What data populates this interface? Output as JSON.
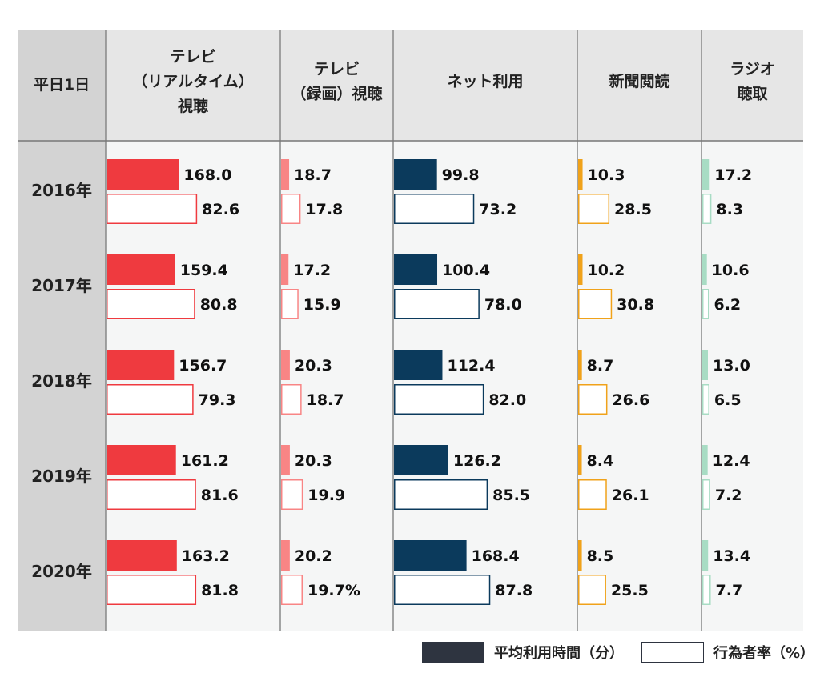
{
  "chart_data": {
    "type": "bar",
    "corner_label": "平日1日",
    "columns": [
      {
        "key": "tv_realtime",
        "header": [
          "テレビ",
          "（リアルタイム）",
          "視聴"
        ],
        "color": "#ef3a3f",
        "border": "#ef3a3f"
      },
      {
        "key": "tv_recorded",
        "header": [
          "テレビ",
          "（録画）視聴"
        ],
        "color": "#f88585",
        "border": "#f88585"
      },
      {
        "key": "internet",
        "header": [
          "ネット利用"
        ],
        "color": "#0b3a5c",
        "border": "#0b3a5c"
      },
      {
        "key": "newspaper",
        "header": [
          "新聞閲読"
        ],
        "color": "#f0a21a",
        "border": "#f0a21a"
      },
      {
        "key": "radio",
        "header": [
          "ラジオ",
          "聴取"
        ],
        "color": "#a8dcc4",
        "border": "#a8dcc4"
      }
    ],
    "rows": [
      {
        "year": "2016年",
        "time": [
          168.0,
          18.7,
          99.8,
          10.3,
          17.2
        ],
        "time_labels": [
          "168.0",
          "18.7",
          "99.8",
          "10.3",
          "17.2"
        ],
        "rate": [
          82.6,
          17.8,
          73.2,
          28.5,
          8.3
        ],
        "rate_labels": [
          "82.6",
          "17.8",
          "73.2",
          "28.5",
          "8.3"
        ]
      },
      {
        "year": "2017年",
        "time": [
          159.4,
          17.2,
          100.4,
          10.2,
          10.6
        ],
        "time_labels": [
          "159.4",
          "17.2",
          "100.4",
          "10.2",
          "10.6"
        ],
        "rate": [
          80.8,
          15.9,
          78.0,
          30.8,
          6.2
        ],
        "rate_labels": [
          "80.8",
          "15.9",
          "78.0",
          "30.8",
          "6.2"
        ]
      },
      {
        "year": "2018年",
        "time": [
          156.7,
          20.3,
          112.4,
          8.7,
          13.0
        ],
        "time_labels": [
          "156.7",
          "20.3",
          "112.4",
          "8.7",
          "13.0"
        ],
        "rate": [
          79.3,
          18.7,
          82.0,
          26.6,
          6.5
        ],
        "rate_labels": [
          "79.3",
          "18.7",
          "82.0",
          "26.6",
          "6.5"
        ]
      },
      {
        "year": "2019年",
        "time": [
          161.2,
          20.3,
          126.2,
          8.4,
          12.4
        ],
        "time_labels": [
          "161.2",
          "20.3",
          "126.2",
          "8.4",
          "12.4"
        ],
        "rate": [
          81.6,
          19.9,
          85.5,
          26.1,
          7.2
        ],
        "rate_labels": [
          "81.6",
          "19.9",
          "85.5",
          "26.1",
          "7.2"
        ]
      },
      {
        "year": "2020年",
        "time": [
          163.2,
          20.2,
          168.4,
          8.5,
          13.4
        ],
        "time_labels": [
          "163.2",
          "20.2",
          "168.4",
          "8.5",
          "13.4"
        ],
        "rate": [
          81.8,
          19.7,
          87.8,
          25.5,
          7.7
        ],
        "rate_labels": [
          "81.8",
          "19.7%",
          "87.8",
          "25.5",
          "7.7"
        ]
      }
    ],
    "legend": {
      "time_label": "平均利用時間（分）",
      "rate_label": "行為者率（%）",
      "time_color": "#2e3440"
    }
  }
}
